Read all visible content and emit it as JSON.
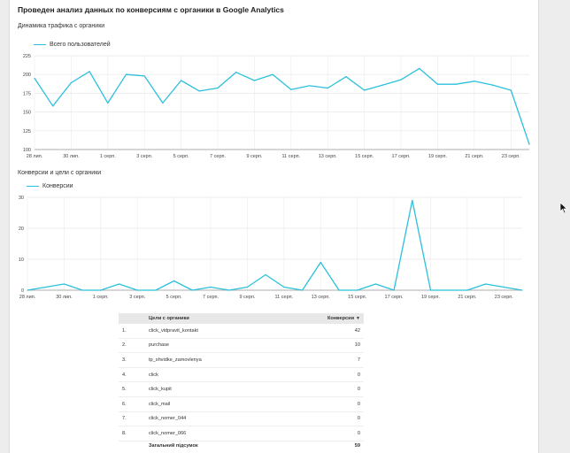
{
  "report_title": "Проведен анализ данных по конверсиям с органики в Google Analytics",
  "colors": {
    "accent": "#2cc0dc",
    "grid": "#e6e6e6",
    "header_bg": "#e8e8e8"
  },
  "chart_data": [
    {
      "type": "line",
      "title": "Динамика трафика с органики",
      "legend": "top-left",
      "grid": true,
      "ylim": [
        100,
        225
      ],
      "yticks": [
        100,
        125,
        150,
        175,
        200,
        225
      ],
      "xtick_labels": [
        "28 лип.",
        "30 лип.",
        "1 серп.",
        "3 серп.",
        "5 серп.",
        "7 серп.",
        "9 серп.",
        "11 серп.",
        "13 серп.",
        "15 серп.",
        "17 серп.",
        "19 серп.",
        "21 серп.",
        "23 серп."
      ],
      "series": [
        {
          "name": "Всего пользователей",
          "values": [
            195,
            158,
            189,
            204,
            162,
            200,
            198,
            162,
            192,
            178,
            182,
            203,
            192,
            200,
            180,
            185,
            182,
            197,
            179,
            186,
            193,
            208,
            187,
            187,
            191,
            186,
            179,
            107
          ]
        }
      ]
    },
    {
      "type": "line",
      "title": "Конверсии и цели с органики",
      "legend": "top-left",
      "grid": true,
      "ylim": [
        0,
        30
      ],
      "yticks": [
        0,
        10,
        20,
        30
      ],
      "xtick_labels": [
        "28 лип.",
        "30 лип.",
        "1 серп.",
        "3 серп.",
        "5 серп.",
        "7 серп.",
        "9 серп.",
        "11 серп.",
        "13 серп.",
        "15 серп.",
        "17 серп.",
        "19 серп.",
        "21 серп.",
        "23 серп."
      ],
      "series": [
        {
          "name": "Конверсии",
          "values": [
            0,
            1,
            2,
            0,
            0,
            2,
            0,
            0,
            3,
            0,
            1,
            0,
            1,
            5,
            1,
            0,
            9,
            0,
            0,
            2,
            0,
            29,
            0,
            0,
            0,
            2,
            1,
            0
          ]
        }
      ]
    }
  ],
  "goals_table": {
    "col_goal": "Цели с органики",
    "col_conv": "Конверсии",
    "rows": [
      {
        "idx": "1.",
        "name": "click_vidpravit_kontakt",
        "value": "42"
      },
      {
        "idx": "2.",
        "name": "purchase",
        "value": "10"
      },
      {
        "idx": "3.",
        "name": "tp_shvidke_zamovlenya",
        "value": "7"
      },
      {
        "idx": "4.",
        "name": "click",
        "value": "0"
      },
      {
        "idx": "5.",
        "name": "click_kupit",
        "value": "0"
      },
      {
        "idx": "6.",
        "name": "click_mail",
        "value": "0"
      },
      {
        "idx": "7.",
        "name": "click_nomer_044",
        "value": "0"
      },
      {
        "idx": "8.",
        "name": "click_nomer_066",
        "value": "0"
      }
    ],
    "total_label": "Загальний підсумок",
    "total_value": "59"
  }
}
